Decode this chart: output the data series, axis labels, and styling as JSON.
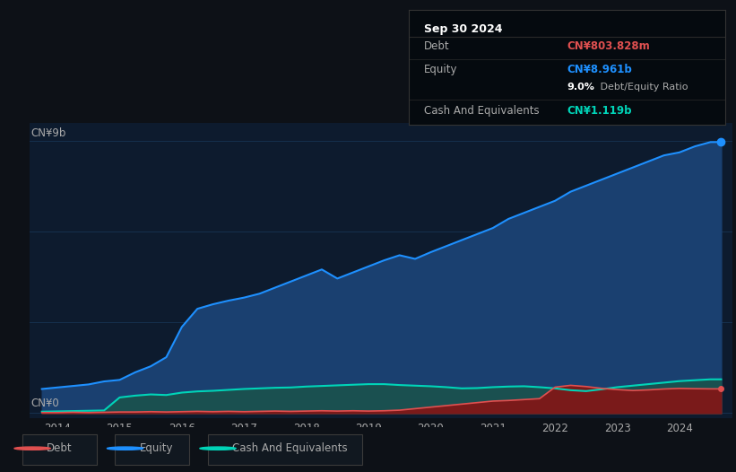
{
  "bg_color": "#0d1117",
  "plot_bg_color": "#0d1b2e",
  "grid_color": "#1a3a5c",
  "text_color": "#aaaaaa",
  "ylabel_top": "CN¥9b",
  "ylabel_bottom": "CN¥0",
  "x_ticks": [
    2014,
    2015,
    2016,
    2017,
    2018,
    2019,
    2020,
    2021,
    2022,
    2023,
    2024
  ],
  "equity_color": "#1e90ff",
  "equity_fill": "#1a4070",
  "debt_color": "#e05050",
  "debt_fill": "#7a1a1a",
  "cash_color": "#00d4b8",
  "cash_fill": "#1a5050",
  "tooltip_bg": "#050a0f",
  "tooltip_border": "#333333",
  "tooltip_title": "Sep 30 2024",
  "tooltip_debt_label": "Debt",
  "tooltip_debt_value": "CN¥803.828m",
  "tooltip_debt_color": "#e05050",
  "tooltip_equity_label": "Equity",
  "tooltip_equity_value": "CN¥8.961b",
  "tooltip_equity_color": "#1e90ff",
  "tooltip_ratio_bold": "9.0%",
  "tooltip_ratio_rest": " Debt/Equity Ratio",
  "tooltip_cash_label": "Cash And Equivalents",
  "tooltip_cash_value": "CN¥1.119b",
  "tooltip_cash_color": "#00d4b8",
  "years": [
    2013.75,
    2014.0,
    2014.25,
    2014.5,
    2014.75,
    2015.0,
    2015.25,
    2015.5,
    2015.75,
    2016.0,
    2016.25,
    2016.5,
    2016.75,
    2017.0,
    2017.25,
    2017.5,
    2017.75,
    2018.0,
    2018.25,
    2018.5,
    2018.75,
    2019.0,
    2019.25,
    2019.5,
    2019.75,
    2020.0,
    2020.25,
    2020.5,
    2020.75,
    2021.0,
    2021.25,
    2021.5,
    2021.75,
    2022.0,
    2022.25,
    2022.5,
    2022.75,
    2023.0,
    2023.25,
    2023.5,
    2023.75,
    2024.0,
    2024.25,
    2024.5,
    2024.67
  ],
  "equity": [
    0.8,
    0.85,
    0.9,
    0.95,
    1.05,
    1.1,
    1.35,
    1.55,
    1.85,
    2.85,
    3.45,
    3.6,
    3.72,
    3.82,
    3.95,
    4.15,
    4.35,
    4.55,
    4.75,
    4.45,
    4.65,
    4.85,
    5.05,
    5.22,
    5.1,
    5.32,
    5.52,
    5.72,
    5.92,
    6.12,
    6.42,
    6.62,
    6.82,
    7.02,
    7.32,
    7.52,
    7.72,
    7.92,
    8.12,
    8.32,
    8.52,
    8.62,
    8.82,
    8.96,
    8.961
  ],
  "debt": [
    0.02,
    0.02,
    0.03,
    0.02,
    0.03,
    0.04,
    0.04,
    0.05,
    0.04,
    0.05,
    0.06,
    0.05,
    0.06,
    0.05,
    0.06,
    0.07,
    0.06,
    0.07,
    0.08,
    0.07,
    0.08,
    0.07,
    0.08,
    0.1,
    0.15,
    0.2,
    0.25,
    0.3,
    0.35,
    0.4,
    0.42,
    0.45,
    0.48,
    0.86,
    0.92,
    0.88,
    0.82,
    0.78,
    0.75,
    0.77,
    0.8,
    0.82,
    0.81,
    0.804,
    0.804
  ],
  "cash": [
    0.05,
    0.06,
    0.07,
    0.08,
    0.09,
    0.52,
    0.58,
    0.62,
    0.6,
    0.68,
    0.72,
    0.74,
    0.77,
    0.8,
    0.82,
    0.84,
    0.85,
    0.88,
    0.9,
    0.92,
    0.94,
    0.96,
    0.96,
    0.93,
    0.91,
    0.89,
    0.86,
    0.82,
    0.83,
    0.86,
    0.88,
    0.89,
    0.86,
    0.82,
    0.76,
    0.73,
    0.79,
    0.86,
    0.91,
    0.96,
    1.01,
    1.06,
    1.09,
    1.119,
    1.119
  ],
  "ylim_min": -0.15,
  "ylim_max": 9.6,
  "xlim_min": 2013.55,
  "xlim_max": 2024.85,
  "grid_yticks": [
    0,
    3,
    6,
    9
  ],
  "legend_items": [
    {
      "color": "#e05050",
      "label": "Debt"
    },
    {
      "color": "#1e90ff",
      "label": "Equity"
    },
    {
      "color": "#00d4b8",
      "label": "Cash And Equivalents"
    }
  ]
}
